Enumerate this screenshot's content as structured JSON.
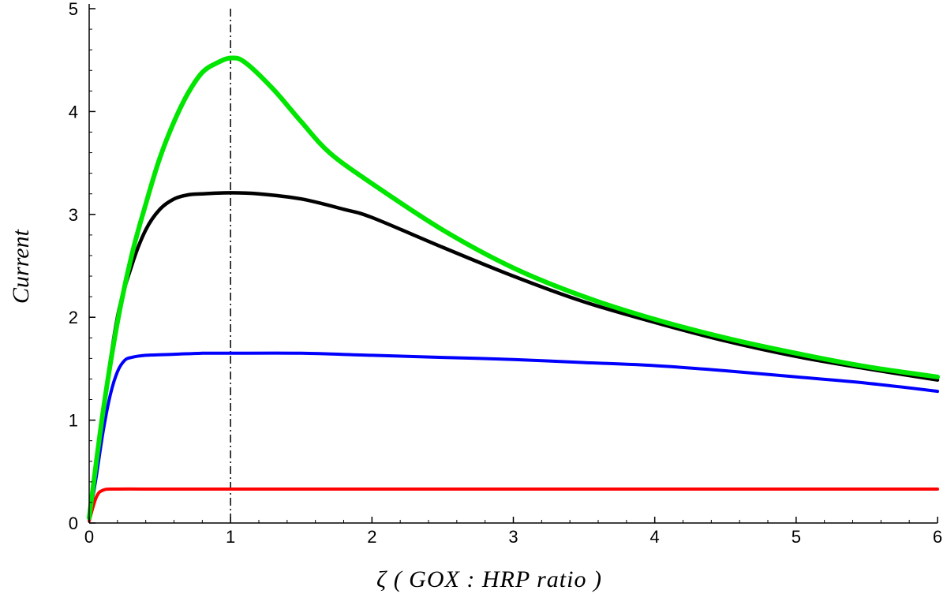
{
  "chart_data": {
    "type": "line",
    "title": "",
    "xlabel": "ζ ( GOX : HRP ratio )",
    "ylabel": "Current",
    "xlim": [
      0,
      6
    ],
    "ylim": [
      0,
      5
    ],
    "x_ticks": [
      "0",
      "1",
      "2",
      "3",
      "4",
      "5",
      "6"
    ],
    "y_ticks": [
      "0",
      "1",
      "2",
      "3",
      "4",
      "5"
    ],
    "grid": false,
    "legend": "none",
    "vline": {
      "x": 1,
      "style": "dash-dot",
      "color": "#000000"
    },
    "series": [
      {
        "color": "#ff0000",
        "x": [
          0,
          0.05,
          0.1,
          0.2,
          0.5,
          1,
          2,
          3,
          4,
          5,
          6
        ],
        "y": [
          0.02,
          0.25,
          0.32,
          0.33,
          0.33,
          0.33,
          0.33,
          0.33,
          0.33,
          0.33,
          0.33
        ]
      },
      {
        "color": "#0000ff",
        "x": [
          0,
          0.05,
          0.1,
          0.15,
          0.2,
          0.25,
          0.3,
          0.4,
          0.6,
          0.8,
          1,
          1.5,
          2,
          2.5,
          3,
          3.5,
          4,
          4.5,
          5,
          5.5,
          6
        ],
        "y": [
          0.05,
          0.45,
          0.9,
          1.25,
          1.47,
          1.58,
          1.61,
          1.63,
          1.64,
          1.65,
          1.65,
          1.65,
          1.63,
          1.61,
          1.59,
          1.56,
          1.53,
          1.48,
          1.42,
          1.36,
          1.28
        ]
      },
      {
        "color": "#000000",
        "x": [
          0,
          0.1,
          0.2,
          0.3,
          0.4,
          0.5,
          0.6,
          0.7,
          0.8,
          1,
          1.2,
          1.5,
          1.8,
          2,
          2.5,
          3,
          3.5,
          4,
          4.5,
          5,
          5.5,
          6
        ],
        "y": [
          0.05,
          1.1,
          2.0,
          2.5,
          2.85,
          3.05,
          3.15,
          3.19,
          3.2,
          3.21,
          3.2,
          3.15,
          3.05,
          2.97,
          2.68,
          2.4,
          2.15,
          1.95,
          1.77,
          1.62,
          1.5,
          1.39
        ]
      },
      {
        "color": "#00e600",
        "x": [
          0,
          0.1,
          0.2,
          0.3,
          0.4,
          0.5,
          0.6,
          0.7,
          0.8,
          0.9,
          1,
          1.1,
          1.3,
          1.5,
          1.7,
          2,
          2.5,
          3,
          3.5,
          4,
          4.5,
          5,
          5.5,
          6
        ],
        "y": [
          0.05,
          1.1,
          1.95,
          2.6,
          3.1,
          3.55,
          3.9,
          4.18,
          4.38,
          4.47,
          4.52,
          4.48,
          4.22,
          3.9,
          3.6,
          3.3,
          2.85,
          2.48,
          2.2,
          1.98,
          1.8,
          1.65,
          1.52,
          1.42
        ]
      }
    ]
  }
}
